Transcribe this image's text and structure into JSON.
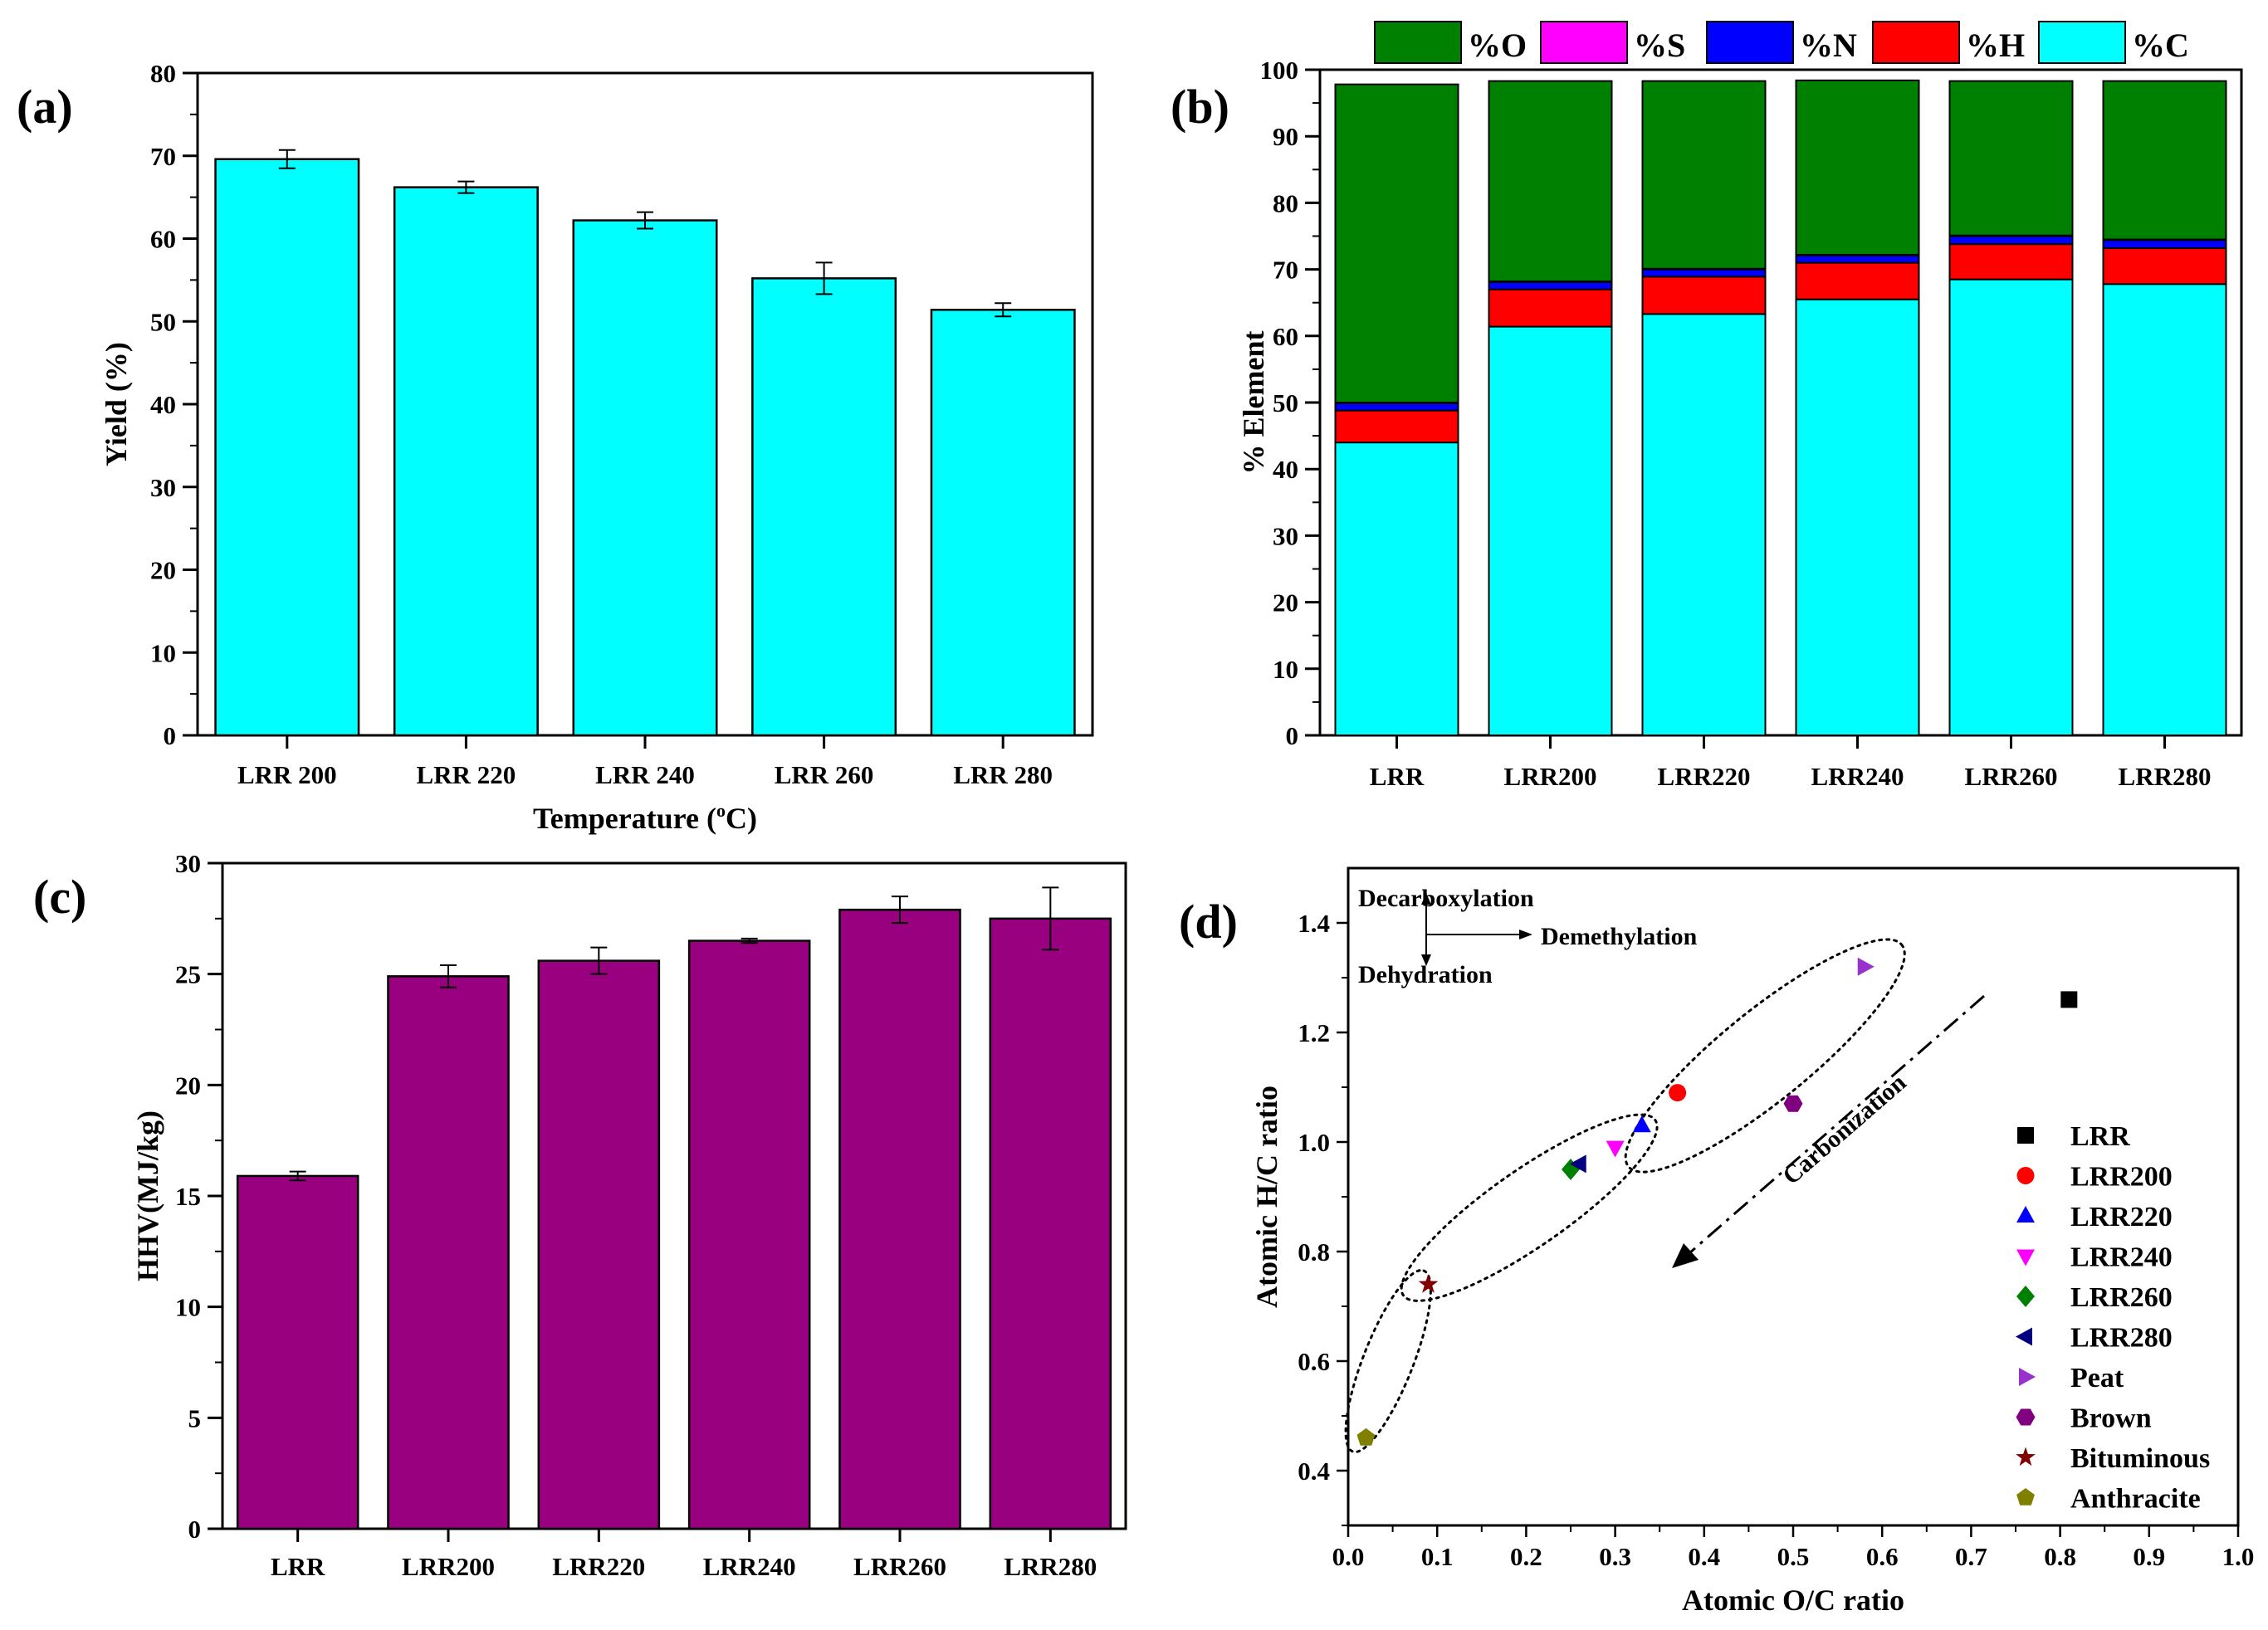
{
  "chart_data": [
    {
      "id": "a",
      "panel_label": "(a)",
      "type": "bar",
      "categories": [
        "LRR 200",
        "LRR 220",
        "LRR 240",
        "LRR 260",
        "LRR 280"
      ],
      "values": [
        69.6,
        66.2,
        62.2,
        55.2,
        51.4
      ],
      "errors": [
        1.1,
        0.7,
        1.0,
        1.9,
        0.8
      ],
      "color": "#00ffff",
      "xlabel": "Temperature (",
      "xlabel_sup": "o",
      "xlabel_end": "C)",
      "ylabel": "Yield (%)",
      "ylim": [
        0,
        80
      ],
      "yticks": [
        "0",
        "10",
        "20",
        "30",
        "40",
        "50",
        "60",
        "70",
        "80"
      ]
    },
    {
      "id": "b",
      "panel_label": "(b)",
      "type": "bar",
      "stacked": true,
      "categories": [
        "LRR",
        "LRR200",
        "LRR220",
        "LRR240",
        "LRR260",
        "LRR280"
      ],
      "series": [
        {
          "name": "%C",
          "color": "#00ffff",
          "values": [
            44.0,
            61.4,
            63.3,
            65.5,
            68.5,
            67.8
          ]
        },
        {
          "name": "%H",
          "color": "#ff0000",
          "values": [
            4.8,
            5.6,
            5.6,
            5.5,
            5.3,
            5.4
          ]
        },
        {
          "name": "%N",
          "color": "#0000ff",
          "values": [
            1.1,
            1.1,
            1.1,
            1.1,
            1.2,
            1.2
          ]
        },
        {
          "name": "%S",
          "color": "#ff00ff",
          "values": [
            0.1,
            0.1,
            0.1,
            0.1,
            0.1,
            0.1
          ]
        },
        {
          "name": "%O",
          "color": "#008000",
          "values": [
            47.8,
            30.1,
            28.2,
            26.2,
            23.2,
            23.8
          ]
        }
      ],
      "legend_order": [
        "%O",
        "%S",
        "%N",
        "%H",
        "%C"
      ],
      "ylabel": "% Element",
      "ylim": [
        0,
        100
      ],
      "yticks": [
        "0",
        "10",
        "20",
        "30",
        "40",
        "50",
        "60",
        "70",
        "80",
        "90",
        "100"
      ]
    },
    {
      "id": "c",
      "panel_label": "(c)",
      "type": "bar",
      "categories": [
        "LRR",
        "LRR200",
        "LRR220",
        "LRR240",
        "LRR260",
        "LRR280"
      ],
      "values": [
        15.9,
        24.9,
        25.6,
        26.5,
        27.9,
        27.5
      ],
      "errors": [
        0.2,
        0.5,
        0.6,
        0.1,
        0.6,
        1.4
      ],
      "color": "#990080",
      "ylabel": "HHV(MJ/kg)",
      "ylim": [
        0,
        30
      ],
      "yticks": [
        "0",
        "5",
        "10",
        "15",
        "20",
        "25",
        "30"
      ]
    },
    {
      "id": "d",
      "panel_label": "(d)",
      "type": "scatter",
      "xlabel": "Atomic O/C ratio",
      "ylabel": "Atomic H/C ratio",
      "xlim": [
        0,
        1.0
      ],
      "ylim": [
        0.3,
        1.5
      ],
      "xticks": [
        "0.0",
        "0.1",
        "0.2",
        "0.3",
        "0.4",
        "0.5",
        "0.6",
        "0.7",
        "0.8",
        "0.9",
        "1.0"
      ],
      "yticks": [
        "0.4",
        "0.6",
        "0.8",
        "1.0",
        "1.2",
        "1.4"
      ],
      "series": [
        {
          "name": "LRR",
          "marker": "square",
          "color": "#000000",
          "x": 0.81,
          "y": 1.26
        },
        {
          "name": "LRR200",
          "marker": "circle",
          "color": "#ff0000",
          "x": 0.37,
          "y": 1.09
        },
        {
          "name": "LRR220",
          "marker": "triangle-up",
          "color": "#0000ff",
          "x": 0.33,
          "y": 1.03
        },
        {
          "name": "LRR240",
          "marker": "triangle-down",
          "color": "#ff00ff",
          "x": 0.3,
          "y": 0.99
        },
        {
          "name": "LRR260",
          "marker": "diamond",
          "color": "#008000",
          "x": 0.25,
          "y": 0.95
        },
        {
          "name": "LRR280",
          "marker": "triangle-left",
          "color": "#000080",
          "x": 0.26,
          "y": 0.96
        },
        {
          "name": "Peat",
          "marker": "triangle-right",
          "color": "#9932cc",
          "x": 0.58,
          "y": 1.32
        },
        {
          "name": "Brown",
          "marker": "hexagon",
          "color": "#800080",
          "x": 0.5,
          "y": 1.07
        },
        {
          "name": "Bituminous",
          "marker": "star",
          "color": "#800000",
          "x": 0.09,
          "y": 0.74
        },
        {
          "name": "Anthracite",
          "marker": "pentagon",
          "color": "#808000",
          "x": 0.02,
          "y": 0.46
        }
      ],
      "annotations": {
        "decarboxylation": "Decarboxylation",
        "demethylation": "Demethylation",
        "dehydration": "Dehydration",
        "carbonization": "Carbonization"
      }
    }
  ]
}
